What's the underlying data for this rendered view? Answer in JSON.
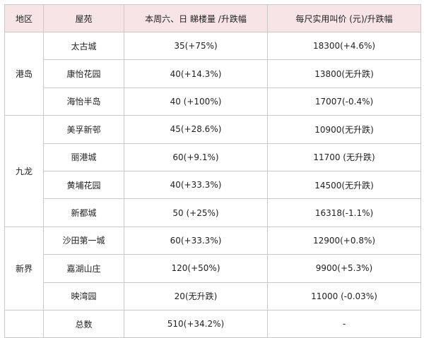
{
  "table": {
    "headers": [
      "地区",
      "屋苑",
      "本周六、日 睇楼量 /升跌幅",
      "每尺实用叫价 (元)/升跌幅"
    ],
    "groups": [
      {
        "region": "港岛",
        "rows": [
          {
            "estate": "太古城",
            "viewing": "35(+75%)",
            "price": "18300(+4.6%)"
          },
          {
            "estate": "康怡花园",
            "viewing": "40(+14.3%)",
            "price": "13800(无升跌)"
          },
          {
            "estate": "海怡半岛",
            "viewing": "40 (+100%)",
            "price": "17007(-0.4%)"
          }
        ]
      },
      {
        "region": "九龙",
        "rows": [
          {
            "estate": "美孚新邨",
            "viewing": "45(+28.6%)",
            "price": "10900(无升跌)"
          },
          {
            "estate": "丽港城",
            "viewing": "60(+9.1%)",
            "price": "11700 (无升跌)"
          },
          {
            "estate": "黄埔花园",
            "viewing": "40(+33.3%)",
            "price": "14500(无升跌)"
          },
          {
            "estate": "新都城",
            "viewing": "50 (+25%)",
            "price": "16318(-1.1%)"
          }
        ]
      },
      {
        "region": "新界",
        "rows": [
          {
            "estate": "沙田第一城",
            "viewing": "60(+33.3%)",
            "price": "12900(+0.8%)"
          },
          {
            "estate": "嘉湖山庄",
            "viewing": "120(+50%)",
            "price": "9900(+5.3%)"
          },
          {
            "estate": "映湾园",
            "viewing": "20(无升跌)",
            "price": "11000 (-0.03%)"
          }
        ]
      }
    ],
    "total": {
      "region": "",
      "estate": "总数",
      "viewing": "510(+34.2%)",
      "price": "-"
    }
  },
  "colors": {
    "header_bg": "#f6e4e7",
    "border": "#c9c9c9",
    "text": "#222222"
  }
}
